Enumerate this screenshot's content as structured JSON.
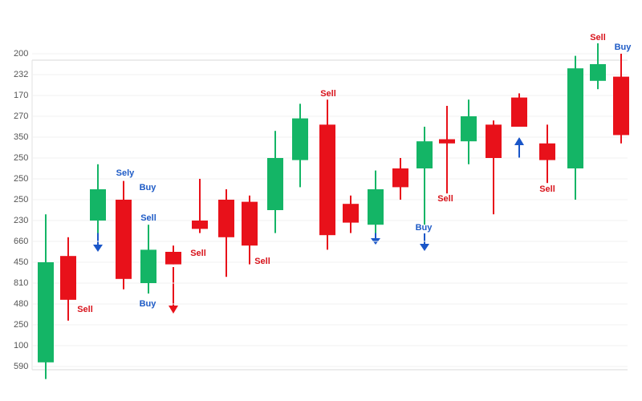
{
  "chart_data": {
    "type": "candlestick",
    "y_axis_labels": [
      "200",
      "232",
      "170",
      "270",
      "350",
      "250",
      "250",
      "250",
      "230",
      "660",
      "450",
      "810",
      "480",
      "250",
      "100",
      "590"
    ],
    "ylim": [
      0,
      15
    ],
    "up_color": "#14b566",
    "down_color": "#e8111a",
    "candles": [
      {
        "open": 0.2,
        "close": 5.0,
        "high": 7.3,
        "low": -0.6
      },
      {
        "open": 5.3,
        "close": 3.2,
        "high": 6.2,
        "low": 2.2
      },
      {
        "open": 7.0,
        "close": 8.5,
        "high": 9.7,
        "low": 6.4
      },
      {
        "open": 8.0,
        "close": 4.2,
        "high": 8.9,
        "low": 3.7
      },
      {
        "open": 4.0,
        "close": 5.6,
        "high": 6.8,
        "low": 3.5
      },
      {
        "open": 5.5,
        "close": 4.9,
        "high": 5.8,
        "low": 4.9
      },
      {
        "open": 7.0,
        "close": 6.6,
        "high": 9.0,
        "low": 6.4
      },
      {
        "open": 8.0,
        "close": 6.2,
        "high": 8.5,
        "low": 4.3
      },
      {
        "open": 7.9,
        "close": 5.8,
        "high": 8.2,
        "low": 4.9
      },
      {
        "open": 7.5,
        "close": 10.0,
        "high": 11.3,
        "low": 6.4
      },
      {
        "open": 9.9,
        "close": 11.9,
        "high": 12.6,
        "low": 8.6
      },
      {
        "open": 11.6,
        "close": 6.3,
        "high": 12.8,
        "low": 5.6
      },
      {
        "open": 7.8,
        "close": 6.9,
        "high": 8.2,
        "low": 6.4
      },
      {
        "open": 6.8,
        "close": 8.5,
        "high": 9.4,
        "low": 6.4
      },
      {
        "open": 9.5,
        "close": 8.6,
        "high": 10.0,
        "low": 8.0
      },
      {
        "open": 9.5,
        "close": 10.8,
        "high": 11.5,
        "low": 6.8
      },
      {
        "open": 10.9,
        "close": 10.7,
        "high": 12.5,
        "low": 8.3
      },
      {
        "open": 10.8,
        "close": 12.0,
        "high": 12.8,
        "low": 9.7
      },
      {
        "open": 11.6,
        "close": 10.0,
        "high": 11.8,
        "low": 7.3
      },
      {
        "open": 12.9,
        "close": 11.5,
        "high": 13.1,
        "low": 11.5
      },
      {
        "open": 10.7,
        "close": 9.9,
        "high": 11.6,
        "low": 8.8
      },
      {
        "open": 9.5,
        "close": 14.3,
        "high": 14.9,
        "low": 8.0
      },
      {
        "open": 13.7,
        "close": 14.5,
        "high": 15.5,
        "low": 13.3
      },
      {
        "open": 13.9,
        "close": 11.1,
        "high": 15.0,
        "low": 10.7
      }
    ],
    "annotations": [
      {
        "text": "Sell",
        "color": "#d8141c"
      },
      {
        "text": "Sely",
        "color": "#1e5bc6"
      },
      {
        "text": "Buy",
        "color": "#1e5bc6"
      },
      {
        "text": "Sell",
        "color": "#1e5bc6"
      },
      {
        "text": "Buy",
        "color": "#1e5bc6"
      },
      {
        "text": "Sell",
        "color": "#d8141c"
      },
      {
        "text": "Sell",
        "color": "#d8141c"
      },
      {
        "text": "Sell",
        "color": "#d8141c"
      },
      {
        "text": "Buy",
        "color": "#1e5bc6"
      },
      {
        "text": "Sell",
        "color": "#d8141c"
      },
      {
        "text": "Sell",
        "color": "#d8141c"
      },
      {
        "text": "Sell",
        "color": "#d8141c"
      },
      {
        "text": "Buy",
        "color": "#1e5bc6"
      }
    ]
  }
}
